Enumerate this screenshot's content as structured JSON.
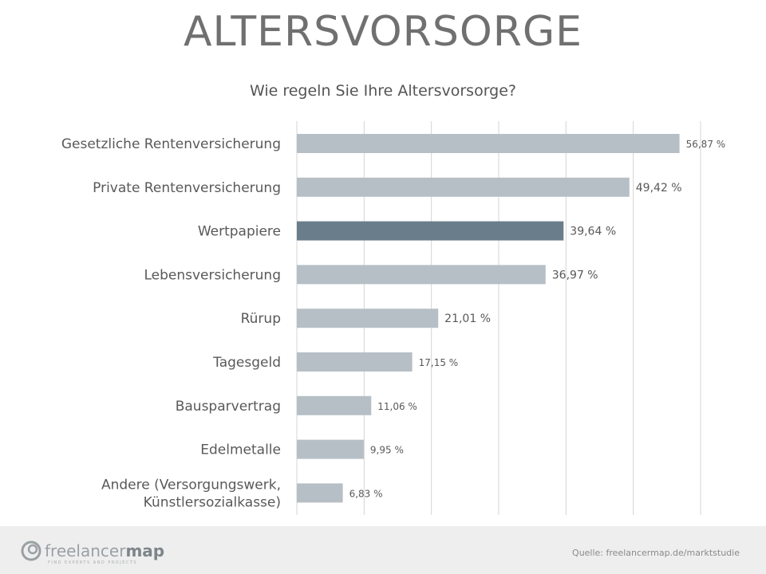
{
  "page": {
    "title": "ALTERSVORSORGE",
    "subtitle": "Wie regeln Sie Ihre Altersvorsorge?"
  },
  "chart_data": {
    "type": "bar",
    "orientation": "horizontal",
    "categories": [
      [
        "Gesetzliche Rentenversicherung"
      ],
      [
        "Private Rentenversicherung"
      ],
      [
        "Wertpapiere"
      ],
      [
        "Lebensversicherung"
      ],
      [
        "Rürup"
      ],
      [
        "Tagesgeld"
      ],
      [
        "Bausparvertrag"
      ],
      [
        "Edelmetalle"
      ],
      [
        "Andere (Versorgungswerk,",
        "Künstlersozialkasse)"
      ]
    ],
    "values": [
      56.87,
      49.42,
      39.64,
      36.97,
      21.01,
      17.15,
      11.06,
      9.95,
      6.83
    ],
    "value_labels": [
      "56,87 %",
      "49,42 %",
      "39,64 %",
      "36,97 %",
      "21,01 %",
      "17,15 %",
      "11,06 %",
      "9,95 %",
      "6,83 %"
    ],
    "highlight_index": 2,
    "xlim": [
      0,
      60
    ],
    "grid_step": 10,
    "grid": true,
    "colors": {
      "bar": "#b6bfc6",
      "highlight": "#6a7d8b",
      "grid": "#d4d4d4",
      "label": "#595959",
      "value_label": "#595959"
    }
  },
  "footer": {
    "logo": {
      "name": "freelancermap-logo",
      "text_light": "freelancer",
      "text_bold": "map",
      "tagline": "FIND EXPERTS AND PROJECTS"
    },
    "source": "Quelle: freelancermap.de/marktstudie"
  }
}
